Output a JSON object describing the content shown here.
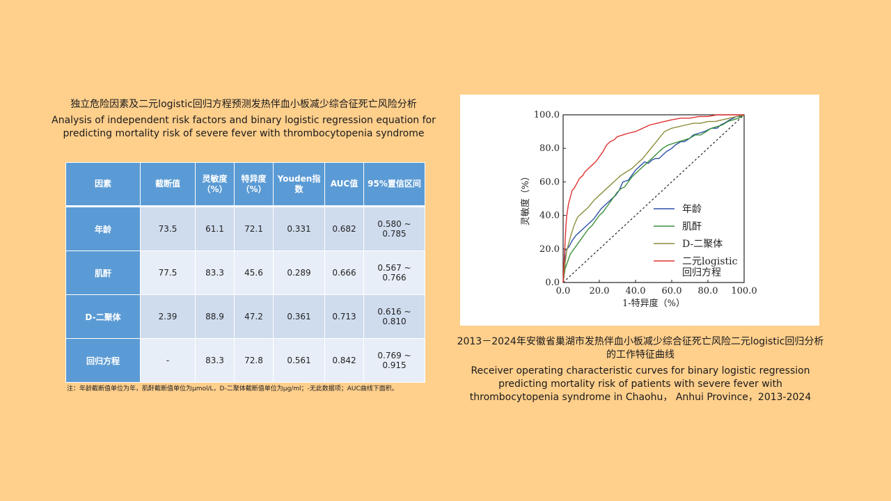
{
  "table_section": {
    "title_cn": "独立危险因素及二元logistic回归方程预测发热伴血小板减少综合征死亡风险分析",
    "title_en": "Analysis of independent risk factors and binary logistic regression equation for predicting mortality risk of severe fever with thrombocytopenia syndrome",
    "headers": [
      "因素",
      "截断值",
      "灵敏度（%）",
      "特异度（%）",
      "Youden指数",
      "AUC值",
      "95%置信区间"
    ],
    "rows": [
      {
        "factor": "年龄",
        "cutoff": "73.5",
        "sensitivity": "61.1",
        "specificity": "72.1",
        "youden": "0.331",
        "auc": "0.682",
        "ci": "0.580 ~ 0.785"
      },
      {
        "factor": "肌酐",
        "cutoff": "77.5",
        "sensitivity": "83.3",
        "specificity": "45.6",
        "youden": "0.289",
        "auc": "0.666",
        "ci": "0.567 ~ 0.766"
      },
      {
        "factor": "D-二聚体",
        "cutoff": "2.39",
        "sensitivity": "88.9",
        "specificity": "47.2",
        "youden": "0.361",
        "auc": "0.713",
        "ci": "0.616 ~ 0.810"
      },
      {
        "factor": "回归方程",
        "cutoff": "-",
        "sensitivity": "83.3",
        "specificity": "72.8",
        "youden": "0.561",
        "auc": "0.842",
        "ci": "0.769 ~ 0.915"
      }
    ],
    "note": "注：年龄截断值单位为年，肌酐截断值单位为μmol/L，D-二聚体截断值单位为μg/ml；-无此数据项；AUC曲线下面积。"
  },
  "figure_section": {
    "title_cn": "2013－2024年安徽省巢湖市发热伴血小板减少综合征死亡风险二元logistic回归分析的工作特征曲线",
    "title_en": "Receiver operating characteristic curves for binary logistic regression predicting mortality risk of patients with severe fever with thrombocytopenia syndrome in Chaohu， Anhui Province，2013-2024"
  },
  "colors": {
    "background": "#FFCF8C",
    "header_blue": "#5B9BD5",
    "row_dark": "#CFDCEE",
    "row_light": "#E8EEF7",
    "age": "#2B4FA8",
    "creatinine": "#3A8F3A",
    "ddimer": "#8C8C3C",
    "regression": "#E03030"
  },
  "chart_data": {
    "type": "line",
    "xlabel": "1-特异度（%）",
    "ylabel": "灵敏度（%）",
    "xlim": [
      0,
      100
    ],
    "ylim": [
      0,
      100
    ],
    "xticks": [
      "0.0",
      "20.0",
      "40.0",
      "60.0",
      "80.0",
      "100.0"
    ],
    "yticks": [
      "0.0",
      "20.0",
      "40.0",
      "60.0",
      "80.0",
      "100.0"
    ],
    "legend_position": "lower-right",
    "reference_line": "diagonal-dashed",
    "series": [
      {
        "name": "年龄",
        "color": "#2B4FA8",
        "x": [
          0,
          1,
          1,
          3,
          5,
          7,
          9,
          11,
          13,
          15,
          17,
          19,
          21,
          23,
          26,
          29,
          31,
          33,
          36,
          38,
          40,
          43,
          45,
          47,
          49,
          51,
          53,
          55,
          57,
          60,
          62,
          65,
          67,
          70,
          72,
          75,
          78,
          80,
          82,
          85,
          87,
          89,
          92,
          94,
          96,
          98,
          100
        ],
        "y": [
          0,
          8,
          19,
          21,
          25,
          28,
          30,
          32,
          34,
          36,
          38,
          41,
          44,
          46,
          49,
          52,
          55,
          60,
          61,
          64,
          67,
          70,
          72,
          71,
          73,
          74,
          74,
          76,
          78,
          80,
          82,
          84,
          84,
          86,
          88,
          89,
          90,
          91,
          92,
          92,
          94,
          95,
          97,
          98,
          99,
          99,
          100
        ]
      },
      {
        "name": "肌酐",
        "color": "#3A8F3A",
        "x": [
          0,
          1,
          3,
          4,
          6,
          8,
          10,
          12,
          14,
          16,
          18,
          20,
          22,
          24,
          26,
          28,
          30,
          32,
          34,
          36,
          38,
          40,
          42,
          45,
          47,
          49,
          51,
          53,
          55,
          58,
          61,
          64,
          67,
          70,
          73,
          76,
          79,
          82,
          85,
          88,
          91,
          94,
          97,
          100
        ],
        "y": [
          0,
          8,
          14,
          17,
          20,
          23,
          26,
          29,
          32,
          34,
          37,
          40,
          42,
          45,
          48,
          51,
          54,
          56,
          57,
          60,
          63,
          65,
          67,
          70,
          72,
          74,
          76,
          78,
          80,
          82,
          83,
          84,
          85,
          86,
          88,
          88,
          90,
          92,
          93,
          94,
          96,
          97,
          98,
          100
        ]
      },
      {
        "name": "D-二聚体",
        "color": "#8C8C3C",
        "x": [
          0,
          1,
          2,
          4,
          6,
          8,
          11,
          14,
          17,
          20,
          23,
          26,
          29,
          32,
          35,
          38,
          41,
          44,
          47,
          50,
          53,
          56,
          60,
          64,
          68,
          72,
          76,
          80,
          84,
          88,
          92,
          96,
          100
        ],
        "y": [
          0,
          11,
          19,
          27,
          34,
          39,
          42,
          45,
          49,
          52,
          55,
          58,
          61,
          64,
          66,
          68,
          71,
          74,
          78,
          82,
          86,
          90,
          92,
          93,
          94,
          95,
          95,
          96,
          96,
          97,
          98,
          99,
          100
        ]
      },
      {
        "name": "二元logistic\n回归方程",
        "color": "#E03030",
        "x": [
          0,
          0.5,
          1,
          1.5,
          2,
          3,
          4,
          5,
          6,
          7,
          8,
          9,
          10,
          11,
          12,
          13,
          14,
          16,
          18,
          20,
          22,
          24,
          26,
          28,
          30,
          33,
          36,
          40,
          44,
          48,
          52,
          56,
          60,
          65,
          70,
          75,
          80,
          85,
          90,
          95,
          100
        ],
        "y": [
          0,
          12,
          22,
          33,
          40,
          47,
          51,
          55,
          56,
          58,
          60,
          62,
          63,
          64,
          66,
          67,
          68,
          70,
          72,
          75,
          78,
          82,
          84,
          85,
          87,
          88,
          89,
          90,
          92,
          94,
          95,
          96,
          97,
          98,
          98,
          99,
          99,
          100,
          100,
          100,
          100
        ]
      }
    ]
  }
}
